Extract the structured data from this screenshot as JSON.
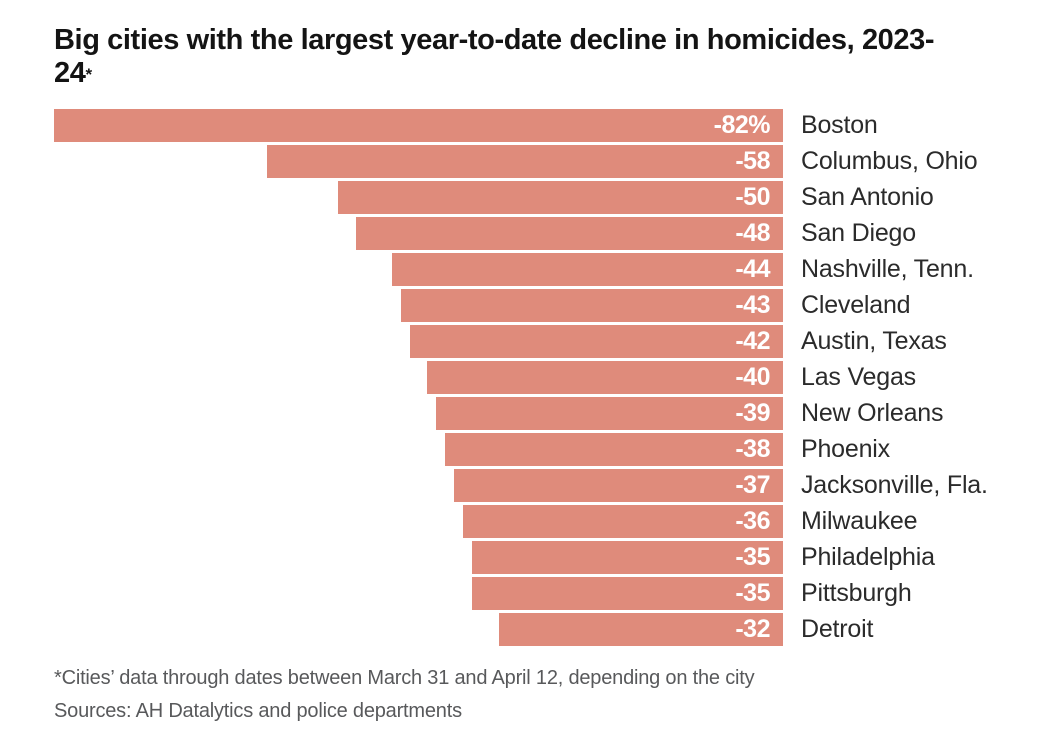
{
  "title": {
    "line1": "Big cities with the largest year-to-date decline in homicides, 2023-",
    "line2": "24",
    "footnote_marker": "*",
    "full": "Big cities with the largest year-to-date decline in homicides, 2023-24*"
  },
  "chart_data": {
    "type": "bar",
    "orientation": "horizontal",
    "title": "Big cities with the largest year-to-date decline in homicides, 2023-24*",
    "categories": [
      "Boston",
      "Columbus, Ohio",
      "San Antonio",
      "San Diego",
      "Nashville, Tenn.",
      "Cleveland",
      "Austin, Texas",
      "Las Vegas",
      "New Orleans",
      "Phoenix",
      "Jacksonville, Fla.",
      "Milwaukee",
      "Philadelphia",
      "Pittsburgh",
      "Detroit"
    ],
    "values": [
      -82,
      -58,
      -50,
      -48,
      -44,
      -43,
      -42,
      -40,
      -39,
      -38,
      -37,
      -36,
      -35,
      -35,
      -32
    ],
    "value_labels": [
      "-82%",
      "-58",
      "-50",
      "-48",
      "-44",
      "-43",
      "-42",
      "-40",
      "-39",
      "-38",
      "-37",
      "-36",
      "-35",
      "-35",
      "-32"
    ],
    "unit": "percent change",
    "axis_max_abs": 82,
    "xlim": [
      -82,
      0
    ],
    "grid": false,
    "legend_position": "none",
    "value_labels_inside_bar": true,
    "category_labels_right_of_bar": true,
    "colors": {
      "bar": "#DF8B7B",
      "value_label": "#ffffff",
      "category_label": "#2b2b2b",
      "title": "#141414",
      "footnote": "#58595b",
      "background": "#ffffff"
    }
  },
  "footnotes": {
    "line1": "*Cities’ data through dates between March 31 and April 12, depending on the city",
    "line2": "Sources: AH Datalytics and police departments"
  }
}
